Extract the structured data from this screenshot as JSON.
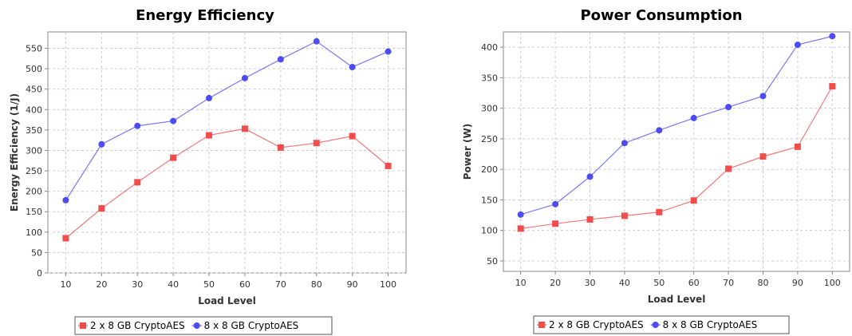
{
  "chart_data": [
    {
      "type": "line",
      "title": "Energy Efficiency",
      "xlabel": "Load Level",
      "ylabel": "Energy Efficiency (1/J)",
      "x": [
        10,
        20,
        30,
        40,
        50,
        60,
        70,
        80,
        90,
        100
      ],
      "ylim": [
        0,
        590
      ],
      "yticks": [
        0,
        50,
        100,
        150,
        200,
        250,
        300,
        350,
        400,
        450,
        500,
        550
      ],
      "grid": true,
      "legend_position": "bottom",
      "series": [
        {
          "name": "2 x 8 GB CryptoAES",
          "color": "#f24c4c",
          "marker": "square",
          "values": [
            85,
            158,
            222,
            282,
            337,
            353,
            307,
            318,
            335,
            262
          ]
        },
        {
          "name": "8 x 8 GB CryptoAES",
          "color": "#4c4cf2",
          "marker": "circle",
          "values": [
            178,
            315,
            360,
            372,
            428,
            477,
            523,
            567,
            504,
            542
          ]
        }
      ]
    },
    {
      "type": "line",
      "title": "Power Consumption",
      "xlabel": "Load Level",
      "ylabel": "Power (W)",
      "x": [
        10,
        20,
        30,
        40,
        50,
        60,
        70,
        80,
        90,
        100
      ],
      "ylim": [
        33,
        425
      ],
      "yticks": [
        50,
        100,
        150,
        200,
        250,
        300,
        350,
        400
      ],
      "grid": true,
      "legend_position": "bottom",
      "series": [
        {
          "name": "2 x 8 GB CryptoAES",
          "color": "#f24c4c",
          "marker": "square",
          "values": [
            103,
            111,
            118,
            124,
            130,
            149,
            201,
            221,
            237,
            336
          ]
        },
        {
          "name": "8 x 8 GB CryptoAES",
          "color": "#4c4cf2",
          "marker": "circle",
          "values": [
            126,
            143,
            188,
            243,
            264,
            284,
            302,
            320,
            404,
            418
          ]
        }
      ]
    }
  ]
}
